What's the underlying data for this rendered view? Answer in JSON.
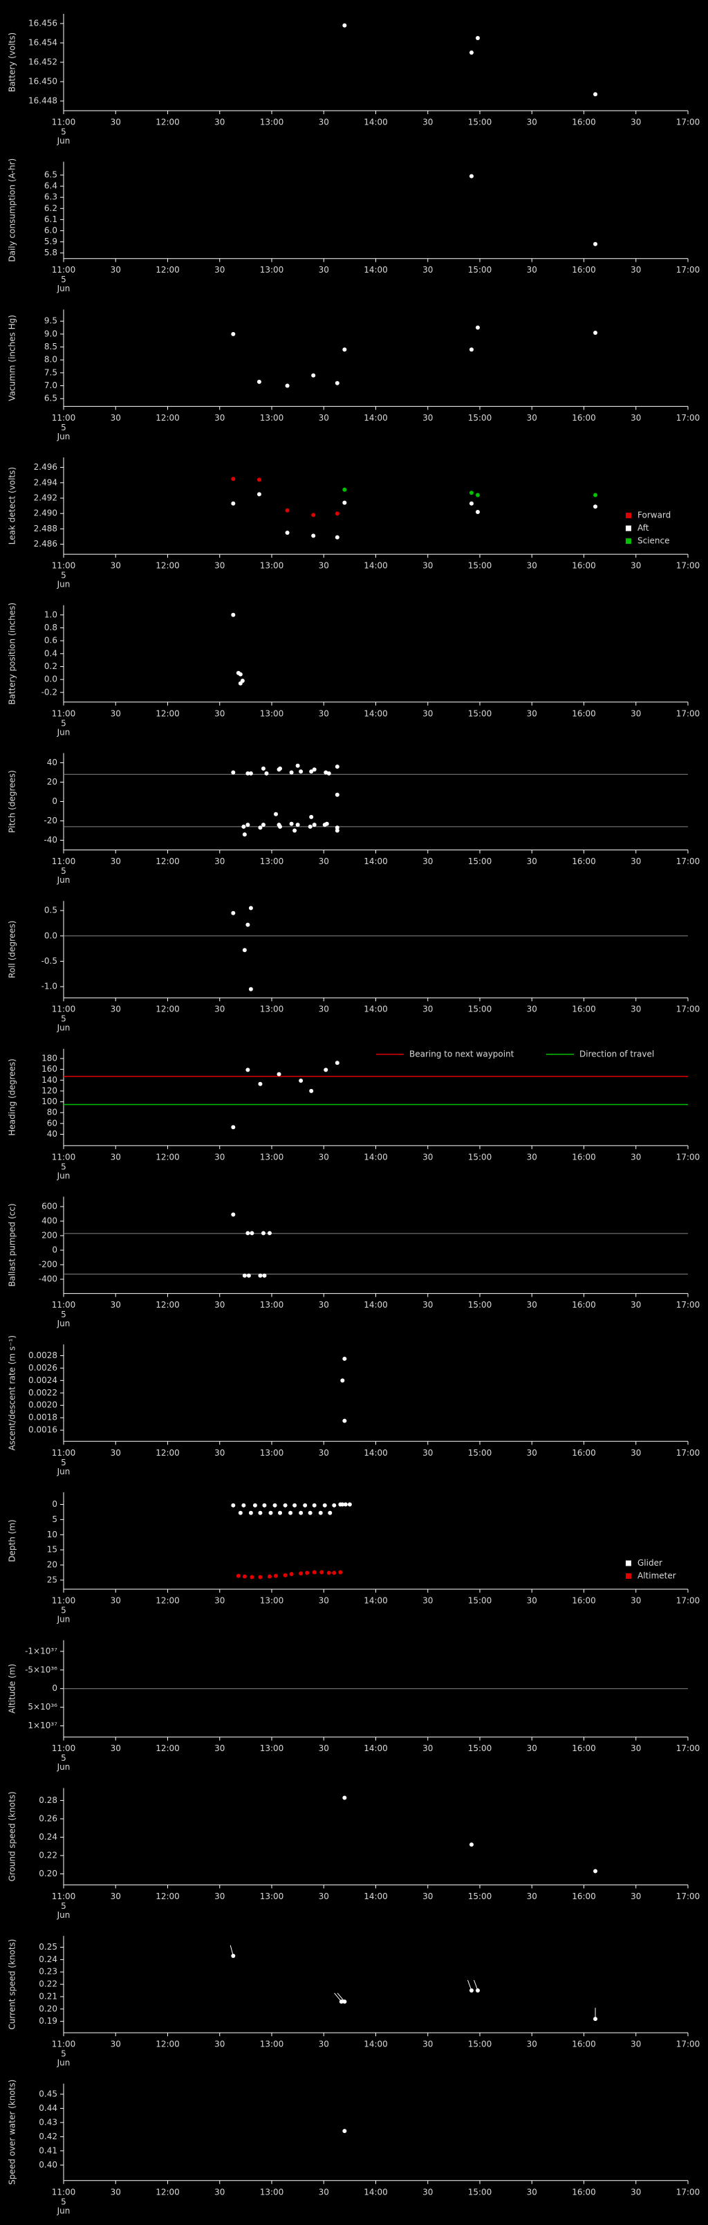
{
  "time_axis": {
    "xlim": [
      11,
      17
    ],
    "xticks": [
      {
        "value": 11,
        "label": "11:00"
      },
      {
        "value": 11.5,
        "label": "30"
      },
      {
        "value": 12,
        "label": "12:00"
      },
      {
        "value": 12.5,
        "label": "30"
      },
      {
        "value": 13,
        "label": "13:00"
      },
      {
        "value": 13.5,
        "label": "30"
      },
      {
        "value": 14,
        "label": "14:00"
      },
      {
        "value": 14.5,
        "label": "30"
      },
      {
        "value": 15,
        "label": "15:00"
      },
      {
        "value": 15.5,
        "label": "30"
      },
      {
        "value": 16,
        "label": "16:00"
      },
      {
        "value": 16.5,
        "label": "30"
      },
      {
        "value": 17,
        "label": "17:00"
      }
    ],
    "date": "5",
    "month": "Jun"
  },
  "chart_data": [
    {
      "type": "scatter",
      "ylabel": "Battery (volts)",
      "ylim": [
        16.447,
        16.457
      ],
      "yticks": [
        16.448,
        {
          "value": 16.45,
          "label": "16.450"
        },
        16.452,
        16.454,
        16.456
      ],
      "series": [
        {
          "color": "#ffffff",
          "x": [
            13.7,
            14.92,
            14.98,
            16.11
          ],
          "values": [
            16.4558,
            16.453,
            16.4545,
            16.4487
          ]
        }
      ]
    },
    {
      "type": "scatter",
      "ylabel": "Daily consumption (A-hr)",
      "ylim": [
        5.75,
        6.62
      ],
      "yticks": [
        5.8,
        5.9,
        {
          "value": 6,
          "label": "6.0"
        },
        6.1,
        6.2,
        6.3,
        6.4,
        6.5
      ],
      "series": [
        {
          "color": "#ffffff",
          "x": [
            14.92,
            16.11
          ],
          "values": [
            6.49,
            5.88
          ]
        }
      ]
    },
    {
      "type": "scatter",
      "ylabel": "Vacumm (inches Hg)",
      "ylim": [
        6.2,
        9.95
      ],
      "yticks": [
        6.5,
        {
          "value": 7,
          "label": "7.0"
        },
        7.5,
        {
          "value": 8,
          "label": "8.0"
        },
        8.5,
        {
          "value": 9,
          "label": "9.0"
        },
        9.5
      ],
      "series": [
        {
          "color": "#ffffff",
          "x": [
            12.63,
            12.88,
            13.15,
            13.4,
            13.63,
            13.7,
            14.92,
            14.98,
            16.11
          ],
          "values": [
            9.0,
            7.15,
            7.0,
            7.4,
            7.1,
            8.4,
            8.4,
            9.25,
            9.05
          ]
        }
      ]
    },
    {
      "type": "scatter",
      "ylabel": "Leak detect (volts)",
      "ylim": [
        2.4847,
        2.4973
      ],
      "legend": "lower right",
      "yticks": [
        2.486,
        2.488,
        {
          "value": 2.49,
          "label": "2.490"
        },
        2.492,
        2.494,
        2.496
      ],
      "series": [
        {
          "name": "Forward",
          "color": "#e00000",
          "x": [
            12.63,
            12.88,
            13.15,
            13.4,
            13.63
          ],
          "values": [
            2.4945,
            2.4944,
            2.4904,
            2.4898,
            2.49
          ]
        },
        {
          "name": "Aft",
          "color": "#ffffff",
          "x": [
            12.63,
            12.88,
            13.15,
            13.4,
            13.63,
            13.7,
            14.92,
            14.98,
            16.11
          ],
          "values": [
            2.4913,
            2.4925,
            2.4875,
            2.4871,
            2.4869,
            2.4914,
            2.4913,
            2.4902,
            2.4909
          ]
        },
        {
          "name": "Science",
          "color": "#00c000",
          "x": [
            13.7,
            14.92,
            14.98,
            16.11
          ],
          "values": [
            2.4931,
            2.4927,
            2.4924,
            2.4924
          ]
        }
      ]
    },
    {
      "type": "scatter",
      "ylabel": "Battery position (inches)",
      "ylim": [
        -0.35,
        1.15
      ],
      "yticks": [
        -0.2,
        {
          "value": 0,
          "label": "0.0"
        },
        0.2,
        0.4,
        0.6,
        0.8,
        {
          "value": 1,
          "label": "1.0"
        }
      ],
      "series": [
        {
          "color": "#ffffff",
          "x": [
            12.63,
            12.68,
            12.7,
            12.72,
            12.7
          ],
          "values": [
            1.0,
            0.1,
            0.08,
            -0.02,
            -0.06
          ]
        }
      ]
    },
    {
      "type": "scatter",
      "ylabel": "Pitch (degrees)",
      "ylim": [
        -50,
        50
      ],
      "yticks": [
        -40,
        -20,
        0,
        20,
        40
      ],
      "hlines": [
        28,
        -26
      ],
      "series": [
        {
          "color": "#ffffff",
          "x": [
            12.63,
            12.77,
            12.8,
            12.92,
            12.95,
            13.07,
            13.08,
            13.19,
            13.25,
            13.28,
            13.38,
            13.41,
            13.52,
            13.55,
            13.63,
            12.73,
            12.74,
            12.77,
            12.89,
            12.92,
            13.04,
            13.07,
            13.08,
            13.19,
            13.22,
            13.25,
            13.38,
            13.37,
            13.41,
            13.51,
            13.53,
            13.63,
            13.63,
            13.63
          ],
          "values": [
            30,
            29,
            29,
            34,
            29,
            33,
            34,
            30,
            37,
            31,
            31,
            33,
            30,
            29,
            36,
            -26,
            -34,
            -24,
            -27,
            -24,
            -13,
            -24,
            -26,
            -23,
            -30,
            -24,
            -16,
            -26,
            -24,
            -24,
            -23,
            -27,
            -30,
            7
          ]
        }
      ]
    },
    {
      "type": "scatter",
      "ylabel": "Roll (degrees)",
      "ylim": [
        -1.22,
        0.69
      ],
      "hlines": [
        0
      ],
      "yticks": [
        {
          "value": -1,
          "label": "-1.0"
        },
        -0.5,
        {
          "value": 0,
          "label": "0.0"
        },
        0.5
      ],
      "series": [
        {
          "color": "#ffffff",
          "x": [
            12.63,
            12.77,
            12.8,
            12.74,
            12.8
          ],
          "values": [
            0.45,
            0.22,
            0.55,
            -0.28,
            -1.05
          ]
        }
      ]
    },
    {
      "type": "scatter",
      "ylabel": "Heading (degrees)",
      "ylim": [
        19,
        198
      ],
      "legend": "upper",
      "yticks": [
        40,
        60,
        80,
        100,
        120,
        140,
        160,
        180
      ],
      "reference_lines": [
        {
          "name": "Bearing to next waypoint",
          "color": "#e00000",
          "value": 147
        },
        {
          "name": "Direction of travel",
          "color": "#00c000",
          "value": 95
        }
      ],
      "series": [
        {
          "color": "#ffffff",
          "x": [
            12.63,
            12.77,
            12.89,
            13.07,
            13.28,
            13.38,
            13.52,
            13.63
          ],
          "values": [
            53,
            159,
            133,
            151,
            139,
            120,
            159,
            172
          ]
        }
      ]
    },
    {
      "type": "scatter",
      "ylabel": "Ballast pumped (cc)",
      "ylim": [
        -596,
        737
      ],
      "yticks": [
        -400,
        -200,
        0,
        200,
        400,
        600
      ],
      "hlines": [
        230,
        -330
      ],
      "series": [
        {
          "color": "#ffffff",
          "x": [
            12.63,
            12.77,
            12.81,
            12.92,
            12.98,
            12.74,
            12.78,
            12.89,
            12.93
          ],
          "values": [
            490,
            235,
            235,
            235,
            235,
            -350,
            -350,
            -350,
            -350
          ]
        }
      ]
    },
    {
      "type": "scatter",
      "ylabel": "Ascent/descent rate (m s⁻¹)",
      "ylim": [
        0.00142,
        0.00298
      ],
      "yticks": [
        0.0016,
        0.0018,
        {
          "value": 0.002,
          "label": "0.0020"
        },
        0.0022,
        0.0024,
        0.0026,
        0.0028
      ],
      "series": [
        {
          "color": "#ffffff",
          "x": [
            13.7,
            13.68,
            13.7
          ],
          "values": [
            0.00275,
            0.0024,
            0.00175
          ]
        }
      ]
    },
    {
      "type": "scatter",
      "ylabel": "Depth (m)",
      "ylim": [
        28,
        -4
      ],
      "yticks": [
        0,
        5,
        10,
        15,
        20,
        25
      ],
      "legend": "lower right",
      "series": [
        {
          "name": "Glider",
          "color": "#ffffff",
          "x": [
            12.63,
            12.73,
            12.84,
            12.93,
            13.03,
            13.13,
            13.22,
            13.32,
            13.41,
            13.51,
            13.6,
            12.7,
            12.8,
            12.89,
            12.99,
            13.08,
            13.18,
            13.28,
            13.37,
            13.47,
            13.56,
            13.66,
            13.68,
            13.71,
            13.75
          ],
          "values": [
            0.3,
            0.3,
            0.3,
            0.3,
            0.3,
            0.3,
            0.3,
            0.3,
            0.3,
            0.3,
            0.3,
            2.8,
            2.8,
            2.8,
            2.8,
            2.8,
            2.8,
            2.8,
            2.8,
            2.8,
            2.8,
            0,
            0,
            0,
            0
          ]
        },
        {
          "name": "Altimeter",
          "color": "#e00000",
          "x": [
            12.68,
            12.74,
            12.81,
            12.89,
            12.98,
            13.04,
            13.13,
            13.19,
            13.28,
            13.34,
            13.41,
            13.48,
            13.55,
            13.6,
            13.66
          ],
          "values": [
            23.6,
            23.8,
            24.0,
            24.0,
            23.8,
            23.6,
            23.4,
            23.0,
            22.8,
            22.6,
            22.4,
            22.4,
            22.6,
            22.6,
            22.4
          ]
        }
      ]
    },
    {
      "type": "scatter",
      "ylabel": "Altitude (m)",
      "ylim": [
        1.3e+37,
        -1.3e+37
      ],
      "hlines": [
        0
      ],
      "yticks": [
        {
          "value": -1e+37,
          "label": "-1×10³⁷"
        },
        {
          "value": -5e+36,
          "label": "-5×10³⁶"
        },
        0,
        {
          "value": 5e+36,
          "label": "5×10³⁶"
        },
        {
          "value": 1e+37,
          "label": "1×10³⁷"
        }
      ],
      "series": []
    },
    {
      "type": "scatter",
      "ylabel": "Ground speed (knots)",
      "ylim": [
        0.188,
        0.2936
      ],
      "yticks": [
        {
          "value": 0.2,
          "label": "0.20"
        },
        0.22,
        0.24,
        0.26,
        0.28
      ],
      "series": [
        {
          "color": "#ffffff",
          "x": [
            13.7,
            14.92,
            16.11
          ],
          "values": [
            0.283,
            0.232,
            0.203
          ]
        }
      ]
    },
    {
      "type": "scatter",
      "ylabel": "Current speed (knots)",
      "ylim": [
        0.1808,
        0.2592
      ],
      "yticks": [
        0.19,
        {
          "value": 0.2,
          "label": "0.20"
        },
        0.21,
        0.22,
        0.23,
        0.24,
        0.25
      ],
      "series": [
        {
          "color": "#ffffff",
          "x": [
            12.63,
            13.67,
            13.7,
            14.92,
            14.98,
            16.11
          ],
          "values": [
            0.243,
            0.206,
            0.206,
            0.215,
            0.215,
            0.192
          ],
          "directions": [
            345,
            320,
            320,
            340,
            340,
            0
          ]
        }
      ]
    },
    {
      "type": "scatter",
      "ylabel": "Speed over water (knots)",
      "ylim": [
        0.389,
        0.4574
      ],
      "yticks": [
        {
          "value": 0.4,
          "label": "0.40"
        },
        0.41,
        0.42,
        0.43,
        0.44,
        0.45
      ],
      "series": [
        {
          "color": "#ffffff",
          "x": [
            13.7
          ],
          "values": [
            0.424
          ]
        }
      ]
    }
  ]
}
